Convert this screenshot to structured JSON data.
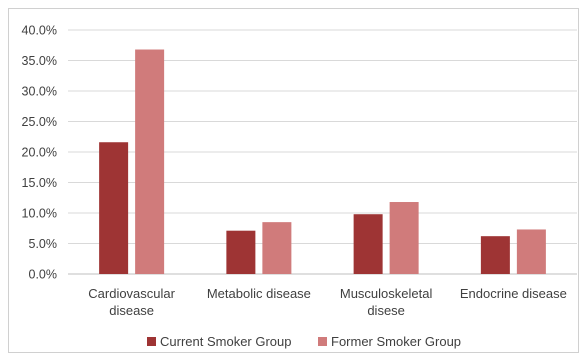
{
  "chart_data": {
    "type": "bar",
    "title": "",
    "xlabel": "",
    "ylabel": "",
    "categories": [
      [
        "Cardiovascular",
        "disease"
      ],
      [
        "Metabolic disease"
      ],
      [
        "Musculoskeletal",
        "disese"
      ],
      [
        "Endocrine disease"
      ]
    ],
    "series": [
      {
        "name": "Current Smoker Group",
        "color": "#9e3434",
        "values": [
          21.6,
          7.1,
          9.8,
          6.2
        ]
      },
      {
        "name": "Former Smoker Group",
        "color": "#d07b7b",
        "values": [
          36.8,
          8.5,
          11.8,
          7.3
        ]
      }
    ],
    "ylim": [
      0,
      40
    ],
    "yticks": [
      0,
      5,
      10,
      15,
      20,
      25,
      30,
      35,
      40
    ],
    "ytick_format": "percent_1dp",
    "grid": {
      "horizontal": true,
      "color": "#d9d9d9"
    },
    "legend": {
      "placement": "bottom"
    }
  }
}
